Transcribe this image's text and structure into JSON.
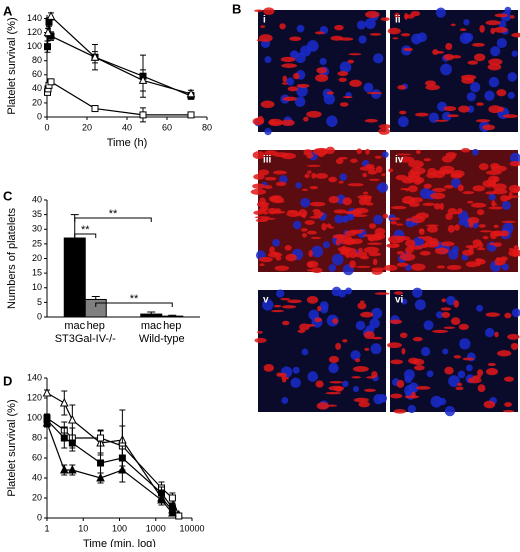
{
  "panel_letters": [
    "A",
    "B",
    "C",
    "D"
  ],
  "chart_data": [
    {
      "type": "line",
      "x_label": "Time (h)",
      "y_label": "Platelet survival (%)",
      "xlim": [
        0,
        80
      ],
      "xticks": [
        0,
        20,
        40,
        60,
        80
      ],
      "ylim": [
        0,
        145
      ],
      "yticks": [
        0,
        20,
        40,
        60,
        80,
        100,
        120,
        140
      ],
      "series": [
        {
          "color": "#000000",
          "marker": "square",
          "filled": true,
          "x": [
            0.25,
            1,
            2,
            24,
            48,
            72
          ],
          "values": [
            100,
            135,
            115,
            85,
            58,
            30
          ],
          "errors": [
            8,
            6,
            6,
            8,
            30,
            5
          ]
        },
        {
          "color": "#000000",
          "marker": "triangle",
          "filled": false,
          "x": [
            0.5,
            2,
            24,
            48,
            72
          ],
          "values": [
            120,
            143,
            85,
            52,
            33
          ],
          "errors": [
            6,
            5,
            18,
            15,
            5
          ]
        },
        {
          "color": "#000000",
          "marker": "square",
          "filled": false,
          "x": [
            0.25,
            0.5,
            1,
            2,
            24,
            48,
            72
          ],
          "values": [
            35,
            40,
            45,
            50,
            12,
            3,
            3
          ],
          "errors": [
            3,
            3,
            3,
            4,
            4,
            10,
            1
          ]
        }
      ]
    },
    {
      "type": "bar",
      "y_label": "Numbers of platelets",
      "categories": [
        "ST3Gal-IV-/-",
        "Wild-type"
      ],
      "ylim": [
        0,
        40
      ],
      "yticks": [
        0,
        5,
        10,
        15,
        20,
        25,
        30,
        35,
        40
      ],
      "series": [
        {
          "name": "mac",
          "color": "#000000",
          "values": [
            27,
            1
          ],
          "errors": [
            8,
            0.7
          ]
        },
        {
          "name": "hep",
          "color": "#808080",
          "values": [
            6,
            0.3
          ],
          "errors": [
            1,
            0.3
          ]
        }
      ],
      "annotations": [
        "**",
        "**",
        "**"
      ]
    },
    {
      "type": "line",
      "x_label": "Time (min, log)",
      "y_label": "Platelet survival (%)",
      "log_x": true,
      "xlim": [
        1,
        10000
      ],
      "xticks": [
        1,
        10,
        100,
        1000,
        10000
      ],
      "ylim": [
        0,
        140
      ],
      "yticks": [
        0,
        20,
        40,
        60,
        80,
        100,
        120,
        140
      ],
      "series": [
        {
          "color": "#000000",
          "marker": "triangle",
          "filled": false,
          "x": [
            1,
            3,
            5,
            30,
            120,
            1440,
            2880,
            4320
          ],
          "values": [
            125,
            115,
            98,
            75,
            78,
            20,
            8,
            3
          ],
          "errors": [
            3,
            12,
            15,
            12,
            30,
            5,
            4,
            2
          ]
        },
        {
          "color": "#000000",
          "marker": "square",
          "filled": false,
          "x": [
            1,
            3,
            5,
            30,
            120,
            1440,
            2880,
            4320
          ],
          "values": [
            100,
            88,
            80,
            80,
            72,
            30,
            20,
            2
          ],
          "errors": [
            4,
            8,
            10,
            8,
            20,
            6,
            5,
            2
          ]
        },
        {
          "color": "#000000",
          "marker": "square",
          "filled": true,
          "x": [
            1,
            3,
            5,
            30,
            120,
            1440,
            2880
          ],
          "values": [
            98,
            80,
            75,
            55,
            60,
            25,
            10
          ],
          "errors": [
            4,
            10,
            8,
            10,
            12,
            6,
            4
          ]
        },
        {
          "color": "#000000",
          "marker": "triangle",
          "filled": true,
          "x": [
            1,
            3,
            5,
            30,
            120,
            1440,
            2880
          ],
          "values": [
            95,
            48,
            48,
            40,
            48,
            18,
            5
          ],
          "errors": [
            4,
            5,
            5,
            5,
            12,
            5,
            3
          ]
        }
      ]
    }
  ],
  "figure_b": {
    "panels": [
      "i",
      "ii",
      "iii",
      "iv",
      "v",
      "vi"
    ]
  }
}
